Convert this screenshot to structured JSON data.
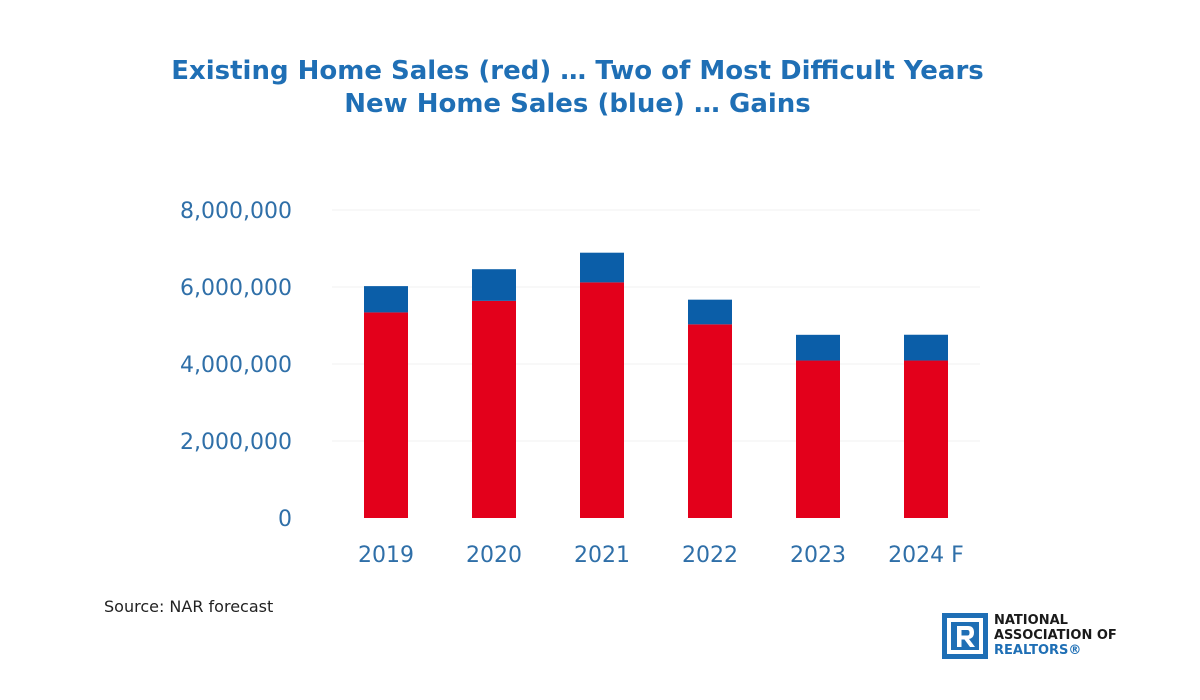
{
  "title_lines": [
    "Existing Home Sales (red) … Two of Most Difficult Years",
    "New Home Sales (blue) … Gains"
  ],
  "chart_data": {
    "type": "bar",
    "stacked": true,
    "categories": [
      "2019",
      "2020",
      "2021",
      "2022",
      "2023",
      "2024 F"
    ],
    "series": [
      {
        "values": [
          5340000,
          5640000,
          6120000,
          5030000,
          4090000,
          4090000
        ],
        "color": "#e3001b"
      },
      {
        "values": [
          683000,
          822000,
          771000,
          641000,
          668000,
          670000
        ],
        "color": "#0b5ea8"
      }
    ],
    "ylim": [
      0,
      8000000
    ],
    "yticks": [
      0,
      2000000,
      4000000,
      6000000,
      8000000
    ],
    "ytick_labels": [
      "0",
      "2,000,000",
      "4,000,000",
      "6,000,000",
      "8,000,000"
    ],
    "grid": true,
    "legend": "none"
  },
  "source_text": "Source: NAR forecast",
  "logo": {
    "line1": "NATIONAL",
    "line2": "ASSOCIATION OF",
    "line3": "REALTORS®",
    "brand_color": "#1f6fb5"
  }
}
